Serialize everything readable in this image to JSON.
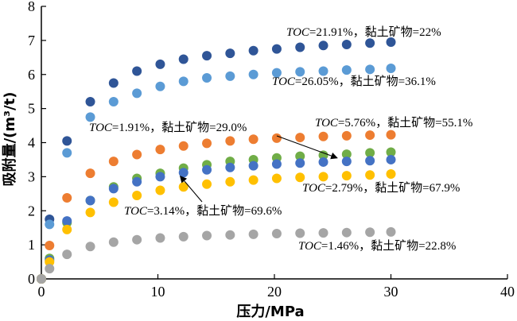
{
  "chart_data": {
    "type": "scatter",
    "xlabel": "压力/MPa",
    "ylabel": "吸附量/(m³/t)",
    "xlim": [
      0,
      40
    ],
    "ylim": [
      0,
      8
    ],
    "xticks": [
      "0",
      "10",
      "20",
      "30",
      "40"
    ],
    "yticks": [
      "0",
      "1",
      "2",
      "3",
      "4",
      "5",
      "6",
      "7",
      "8"
    ],
    "grid": false,
    "legend": "none",
    "series": [
      {
        "color": "#2f5597",
        "x": [
          0,
          0.7,
          2.2,
          4.2,
          6.2,
          8.2,
          10.2,
          12.2,
          14.2,
          16.2,
          18.2,
          20.2,
          22.2,
          24.2,
          26.2,
          28.2,
          30
        ],
        "y": [
          0,
          1.75,
          4.05,
          5.2,
          5.75,
          6.1,
          6.3,
          6.45,
          6.55,
          6.62,
          6.7,
          6.75,
          6.8,
          6.85,
          6.88,
          6.92,
          6.95
        ],
        "annotation": {
          "var": "TOC",
          "text": "=21.91%，黏土矿物=22%"
        }
      },
      {
        "color": "#5b9bd5",
        "x": [
          0,
          0.7,
          2.2,
          4.2,
          6.2,
          8.2,
          10.2,
          12.2,
          14.2,
          16.2,
          18.2,
          20.2,
          22.2,
          24.2,
          26.2,
          28.2,
          30
        ],
        "y": [
          0,
          1.6,
          3.7,
          4.75,
          5.2,
          5.45,
          5.65,
          5.8,
          5.9,
          5.95,
          6.0,
          6.05,
          6.08,
          6.1,
          6.13,
          6.15,
          6.18
        ],
        "annotation": {
          "var": "TOC",
          "text": "=26.05%，黏土矿物=36.1%"
        }
      },
      {
        "color": "#ed7d31",
        "x": [
          0,
          0.7,
          2.2,
          4.2,
          6.2,
          8.2,
          10.2,
          12.2,
          14.2,
          16.2,
          18.2,
          20.2,
          22.2,
          24.2,
          26.2,
          28.2,
          30
        ],
        "y": [
          0,
          0.98,
          2.38,
          3.1,
          3.45,
          3.65,
          3.8,
          3.9,
          3.98,
          4.05,
          4.1,
          4.13,
          4.15,
          4.18,
          4.2,
          4.22,
          4.23
        ],
        "annotation": {
          "var": "TOC",
          "text": "=5.76%，黏土矿物=55.1%"
        }
      },
      {
        "color": "#70ad47",
        "x": [
          0,
          0.7,
          2.2,
          4.2,
          6.2,
          8.2,
          10.2,
          12.2,
          14.2,
          16.2,
          18.2,
          20.2,
          22.2,
          24.2,
          26.2,
          28.2,
          30
        ],
        "y": [
          0,
          0.6,
          1.65,
          2.3,
          2.7,
          2.95,
          3.1,
          3.25,
          3.35,
          3.45,
          3.5,
          3.55,
          3.6,
          3.63,
          3.66,
          3.7,
          3.72
        ],
        "annotation": {
          "var": "TOC",
          "text": "=1.91%，黏土矿物=29.0%"
        }
      },
      {
        "color": "#4472c4",
        "x": [
          0,
          0.7,
          2.2,
          4.2,
          6.2,
          8.2,
          10.2,
          12.2,
          14.2,
          16.2,
          18.2,
          20.2,
          22.2,
          24.2,
          26.2,
          28.2,
          30
        ],
        "y": [
          0,
          0.55,
          1.7,
          2.3,
          2.65,
          2.85,
          3.0,
          3.12,
          3.2,
          3.27,
          3.32,
          3.37,
          3.4,
          3.43,
          3.45,
          3.47,
          3.5
        ],
        "annotation": {
          "var": "TOC",
          "text": "=3.14%，黏土矿物=69.6%"
        }
      },
      {
        "color": "#ffc000",
        "x": [
          0,
          0.7,
          2.2,
          4.2,
          6.2,
          8.2,
          10.2,
          12.2,
          14.2,
          16.2,
          18.2,
          20.2,
          22.2,
          24.2,
          26.2,
          28.2,
          30
        ],
        "y": [
          0,
          0.5,
          1.45,
          1.95,
          2.25,
          2.45,
          2.6,
          2.7,
          2.78,
          2.85,
          2.9,
          2.95,
          2.98,
          3.0,
          3.03,
          3.05,
          3.08
        ],
        "annotation": {
          "var": "TOC",
          "text": "=2.79%，黏土矿物=67.9%"
        }
      },
      {
        "color": "#a5a5a5",
        "x": [
          0,
          0.7,
          2.2,
          4.2,
          6.2,
          8.2,
          10.2,
          12.2,
          14.2,
          16.2,
          18.2,
          20.2,
          22.2,
          24.2,
          26.2,
          28.2,
          30
        ],
        "y": [
          0,
          0.3,
          0.72,
          0.95,
          1.08,
          1.15,
          1.2,
          1.24,
          1.27,
          1.29,
          1.31,
          1.33,
          1.34,
          1.35,
          1.36,
          1.37,
          1.38
        ],
        "annotation": {
          "var": "TOC",
          "text": "=1.46%，黏土矿物=22.8%"
        }
      }
    ]
  }
}
